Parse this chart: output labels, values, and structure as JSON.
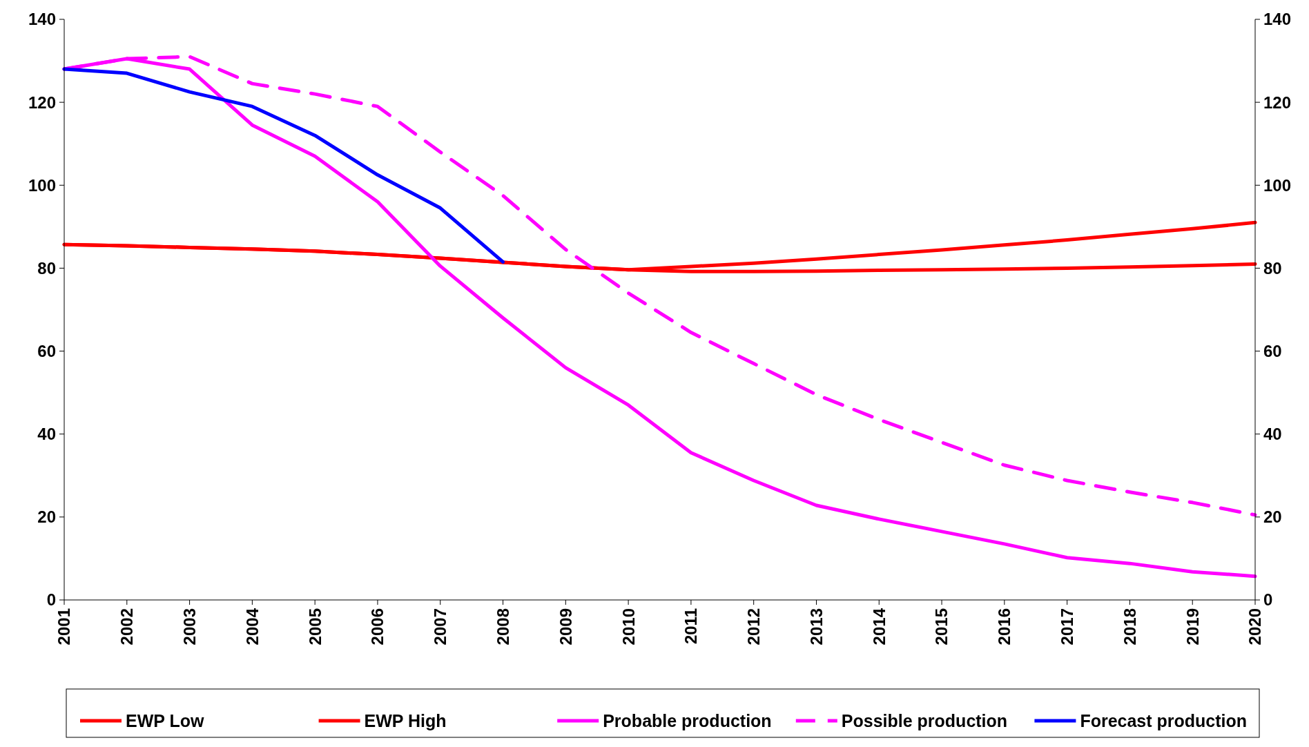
{
  "chart_data": {
    "type": "line",
    "x": [
      2001,
      2002,
      2003,
      2004,
      2005,
      2006,
      2007,
      2008,
      2009,
      2010,
      2011,
      2012,
      2013,
      2014,
      2015,
      2016,
      2017,
      2018,
      2019,
      2020
    ],
    "xlim": [
      2001,
      2020
    ],
    "xticks": [
      2001,
      2002,
      2003,
      2004,
      2005,
      2006,
      2007,
      2008,
      2009,
      2010,
      2011,
      2012,
      2013,
      2014,
      2015,
      2016,
      2017,
      2018,
      2019,
      2020
    ],
    "ylim": [
      0,
      140
    ],
    "yticks": [
      0,
      20,
      40,
      60,
      80,
      100,
      120,
      140
    ],
    "y2lim": [
      0,
      140
    ],
    "y2ticks": [
      0,
      20,
      40,
      60,
      80,
      100,
      120,
      140
    ],
    "grid": false,
    "legend": "bottom",
    "series": [
      {
        "name": "EWP Low",
        "color": "#ff0000",
        "line_style": "solid",
        "values": [
          85.7,
          85.4,
          85,
          84.6,
          84.1,
          83.3,
          82.4,
          81.4,
          80.4,
          79.6,
          79.2,
          79.2,
          79.3,
          79.5,
          79.6,
          79.8,
          80,
          80.3,
          80.6,
          81
        ]
      },
      {
        "name": "EWP High",
        "color": "#ff0000",
        "line_style": "solid",
        "values": [
          85.7,
          85.4,
          85,
          84.6,
          84.1,
          83.3,
          82.4,
          81.4,
          80.4,
          79.6,
          80.4,
          81.2,
          82.2,
          83.3,
          84.4,
          85.6,
          86.8,
          88.2,
          89.5,
          91
        ]
      },
      {
        "name": "Probable production",
        "color": "#ff00ff",
        "line_style": "solid",
        "values": [
          128,
          130.5,
          128,
          114.5,
          107,
          96,
          80.5,
          68,
          56,
          47,
          35.5,
          28.8,
          22.8,
          19.5,
          16.5,
          13.5,
          10.2,
          8.8,
          6.8,
          5.7
        ]
      },
      {
        "name": "Possible production",
        "color": "#ff00ff",
        "line_style": "dashed",
        "values": [
          128,
          130.5,
          131,
          124.5,
          122,
          119,
          108,
          97.5,
          84.5,
          74,
          64.5,
          57,
          49.5,
          43.5,
          38,
          32.5,
          28.8,
          26,
          23.5,
          20.5
        ]
      },
      {
        "name": "Forecast production",
        "color": "#0000ff",
        "line_style": "solid",
        "values": [
          128,
          127,
          122.5,
          119,
          112,
          102.5,
          94.5,
          81.5,
          null,
          null,
          null,
          null,
          null,
          null,
          null,
          null,
          null,
          null,
          null,
          null
        ]
      }
    ]
  }
}
